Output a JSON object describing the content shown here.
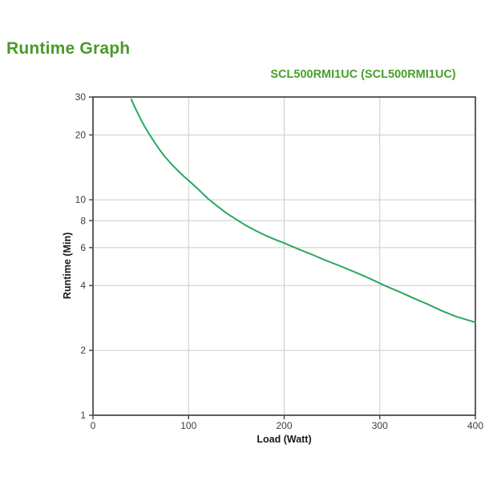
{
  "page": {
    "heading": "Runtime Graph"
  },
  "colors": {
    "heading_green": "#4a9b29",
    "title_green": "#47a02b",
    "curve_green": "#28a860",
    "gridline_gray": "#cbcbcb",
    "axis_gray": "#4d4d4d",
    "tick_label_gray": "#3c3c3c",
    "axis_title_black": "#1a1a1a",
    "background": "#ffffff"
  },
  "chart_data": {
    "type": "line",
    "title": "SCL500RMI1UC (SCL500RMI1UC)",
    "xlabel": "Load (Watt)",
    "ylabel": "Runtime (Min)",
    "x_axis": {
      "scale": "linear",
      "min": 0,
      "max": 400,
      "ticks": [
        0,
        100,
        200,
        300,
        400
      ],
      "gridlines": [
        100,
        200,
        300
      ]
    },
    "y_axis": {
      "scale": "log",
      "min": 1,
      "max": 30,
      "ticks": [
        30,
        20,
        10,
        8,
        6,
        4,
        2,
        1
      ],
      "gridlines": [
        20,
        10,
        8,
        6,
        4,
        2
      ]
    },
    "grid": true,
    "legend": "none",
    "series": [
      {
        "name": "SCL500RMI1UC",
        "points": [
          [
            40,
            29.3
          ],
          [
            45,
            26.2
          ],
          [
            50,
            23.6
          ],
          [
            55,
            21.5
          ],
          [
            60,
            19.8
          ],
          [
            65,
            18.3
          ],
          [
            70,
            17.0
          ],
          [
            75,
            15.9
          ],
          [
            80,
            15.0
          ],
          [
            85,
            14.2
          ],
          [
            90,
            13.5
          ],
          [
            95,
            12.85
          ],
          [
            100,
            12.3
          ],
          [
            110,
            11.2
          ],
          [
            120,
            10.15
          ],
          [
            130,
            9.35
          ],
          [
            140,
            8.65
          ],
          [
            150,
            8.1
          ],
          [
            160,
            7.6
          ],
          [
            170,
            7.2
          ],
          [
            180,
            6.85
          ],
          [
            190,
            6.55
          ],
          [
            200,
            6.3
          ],
          [
            215,
            5.9
          ],
          [
            230,
            5.55
          ],
          [
            245,
            5.2
          ],
          [
            260,
            4.9
          ],
          [
            275,
            4.6
          ],
          [
            290,
            4.3
          ],
          [
            305,
            4.0
          ],
          [
            320,
            3.75
          ],
          [
            335,
            3.5
          ],
          [
            350,
            3.28
          ],
          [
            365,
            3.05
          ],
          [
            380,
            2.87
          ],
          [
            400,
            2.7
          ]
        ]
      }
    ]
  }
}
